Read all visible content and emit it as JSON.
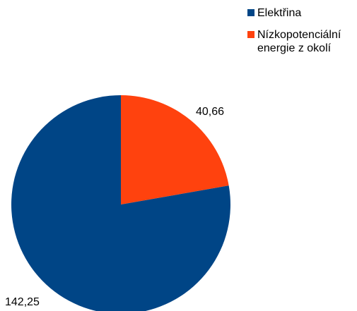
{
  "chart_data": {
    "type": "pie",
    "series": [
      {
        "name": "Elektřina",
        "value": 142.25,
        "label": "142,25",
        "color": "#004586"
      },
      {
        "name": "Nízkopotenciální energie z okolí",
        "legend_lines": [
          "Nízkopotenciální",
          "energie z okolí"
        ],
        "value": 40.66,
        "label": "40,66",
        "color": "#ff420e"
      }
    ],
    "legend_position": "top-right",
    "start_angle_deg": 0,
    "direction": "clockwise"
  }
}
